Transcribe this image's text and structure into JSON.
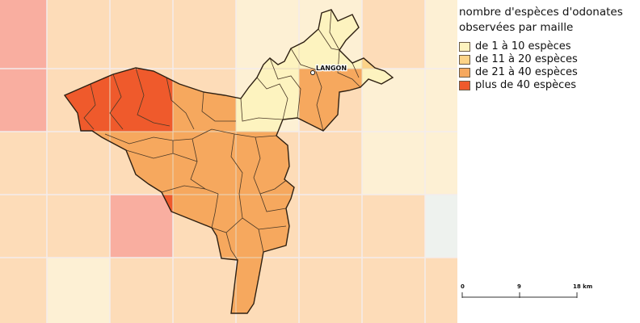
{
  "legend": {
    "title_line1": "nombre d'espèces d'odonates",
    "title_line2": "observées par maille",
    "items": [
      {
        "label": "de 1 à 10 espèces",
        "color": "#fdf3bf"
      },
      {
        "label": "de 11 à 20 espèces",
        "color": "#fcd388"
      },
      {
        "label": "de 21 à 40 espèces",
        "color": "#f6a85e"
      },
      {
        "label": "plus de 40 espèces",
        "color": "#ef5a2c"
      }
    ]
  },
  "town": {
    "name": "LANGON"
  },
  "scale_bar": {
    "ticks": [
      "0",
      "9",
      "18 km"
    ]
  },
  "colors": {
    "faded_low": "#fdf0d4",
    "faded_mid": "#fddcb8",
    "faded_high": "#fcc8b0",
    "faded_top": "#f9aea0",
    "outline": "#3a2a1a"
  }
}
